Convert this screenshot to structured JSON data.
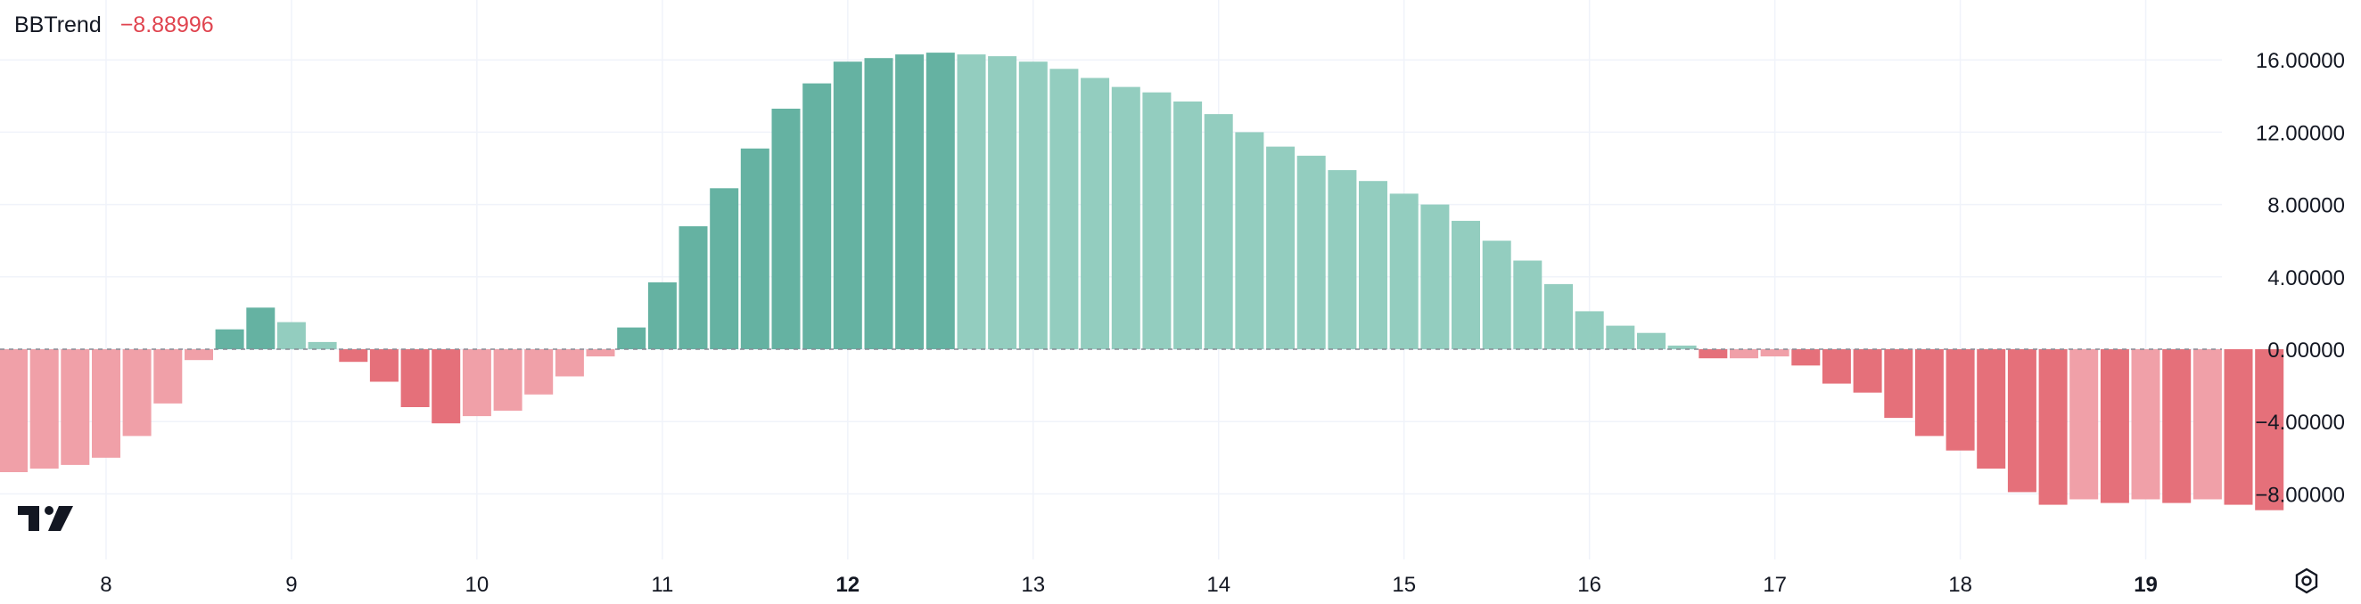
{
  "legend": {
    "name": "BBTrend",
    "value": "−8.88996"
  },
  "logo_icon": "tradingview-logo-icon",
  "settings_icon": "gear-icon",
  "colors": {
    "up_strong": "#65b2a2",
    "up_weak": "#93cdbf",
    "down_strong": "#e5707a",
    "down_weak": "#f0a0a8",
    "legend_value": "#e0444f",
    "grid": "#f0f3fa",
    "axis_text": "#131722",
    "zero_line": "#888b94"
  },
  "chart_data": {
    "type": "bar",
    "title": "BBTrend",
    "ylim": [
      -9.8,
      17.4
    ],
    "y_ticks": [
      16,
      12,
      8,
      4,
      0,
      -4,
      -8
    ],
    "y_tick_labels": [
      "16.00000",
      "12.00000",
      "8.00000",
      "4.00000",
      "0.00000",
      "−4.00000",
      "−8.00000"
    ],
    "x_ticks": [
      {
        "label": "8",
        "pos": 3,
        "bold": false
      },
      {
        "label": "9",
        "pos": 9,
        "bold": false
      },
      {
        "label": "10",
        "pos": 15,
        "bold": false
      },
      {
        "label": "11",
        "pos": 21,
        "bold": false
      },
      {
        "label": "12",
        "pos": 27,
        "bold": true
      },
      {
        "label": "13",
        "pos": 33,
        "bold": false
      },
      {
        "label": "14",
        "pos": 39,
        "bold": false
      },
      {
        "label": "15",
        "pos": 45,
        "bold": false
      },
      {
        "label": "16",
        "pos": 51,
        "bold": false
      },
      {
        "label": "17",
        "pos": 57,
        "bold": false
      },
      {
        "label": "18",
        "pos": 63,
        "bold": false
      },
      {
        "label": "19",
        "pos": 69,
        "bold": true
      }
    ],
    "grid": true,
    "values": [
      -6.8,
      -6.6,
      -6.4,
      -6.0,
      -4.8,
      -3.0,
      -0.6,
      1.1,
      2.3,
      1.5,
      0.4,
      -0.7,
      -1.8,
      -3.2,
      -4.1,
      -3.7,
      -3.4,
      -2.5,
      -1.5,
      -0.4,
      1.2,
      3.7,
      6.8,
      8.9,
      11.1,
      13.3,
      14.7,
      15.9,
      16.1,
      16.3,
      16.4,
      16.3,
      16.2,
      15.9,
      15.5,
      15.0,
      14.5,
      14.2,
      13.7,
      13.0,
      12.0,
      11.2,
      10.7,
      9.9,
      9.3,
      8.6,
      8.0,
      7.1,
      6.0,
      4.9,
      3.6,
      2.1,
      1.3,
      0.9,
      0.2,
      -0.5,
      -0.5,
      -0.4,
      -0.9,
      -1.9,
      -2.4,
      -3.8,
      -4.8,
      -5.6,
      -6.6,
      -7.9,
      -8.6,
      -8.3,
      -8.5,
      -8.3,
      -8.5,
      -8.3,
      -8.6,
      -8.9
    ],
    "colors": [
      "dw",
      "dw",
      "dw",
      "dw",
      "dw",
      "dw",
      "dw",
      "us",
      "us",
      "uw",
      "uw",
      "ds",
      "ds",
      "ds",
      "ds",
      "dw",
      "dw",
      "dw",
      "dw",
      "dw",
      "us",
      "us",
      "us",
      "us",
      "us",
      "us",
      "us",
      "us",
      "us",
      "us",
      "us",
      "uw",
      "uw",
      "uw",
      "uw",
      "uw",
      "uw",
      "uw",
      "uw",
      "uw",
      "uw",
      "uw",
      "uw",
      "uw",
      "uw",
      "uw",
      "uw",
      "uw",
      "uw",
      "uw",
      "uw",
      "uw",
      "uw",
      "uw",
      "uw",
      "ds",
      "dw",
      "dw",
      "ds",
      "ds",
      "ds",
      "ds",
      "ds",
      "ds",
      "ds",
      "ds",
      "ds",
      "dw",
      "ds",
      "dw",
      "ds",
      "dw",
      "ds",
      "ds"
    ]
  }
}
